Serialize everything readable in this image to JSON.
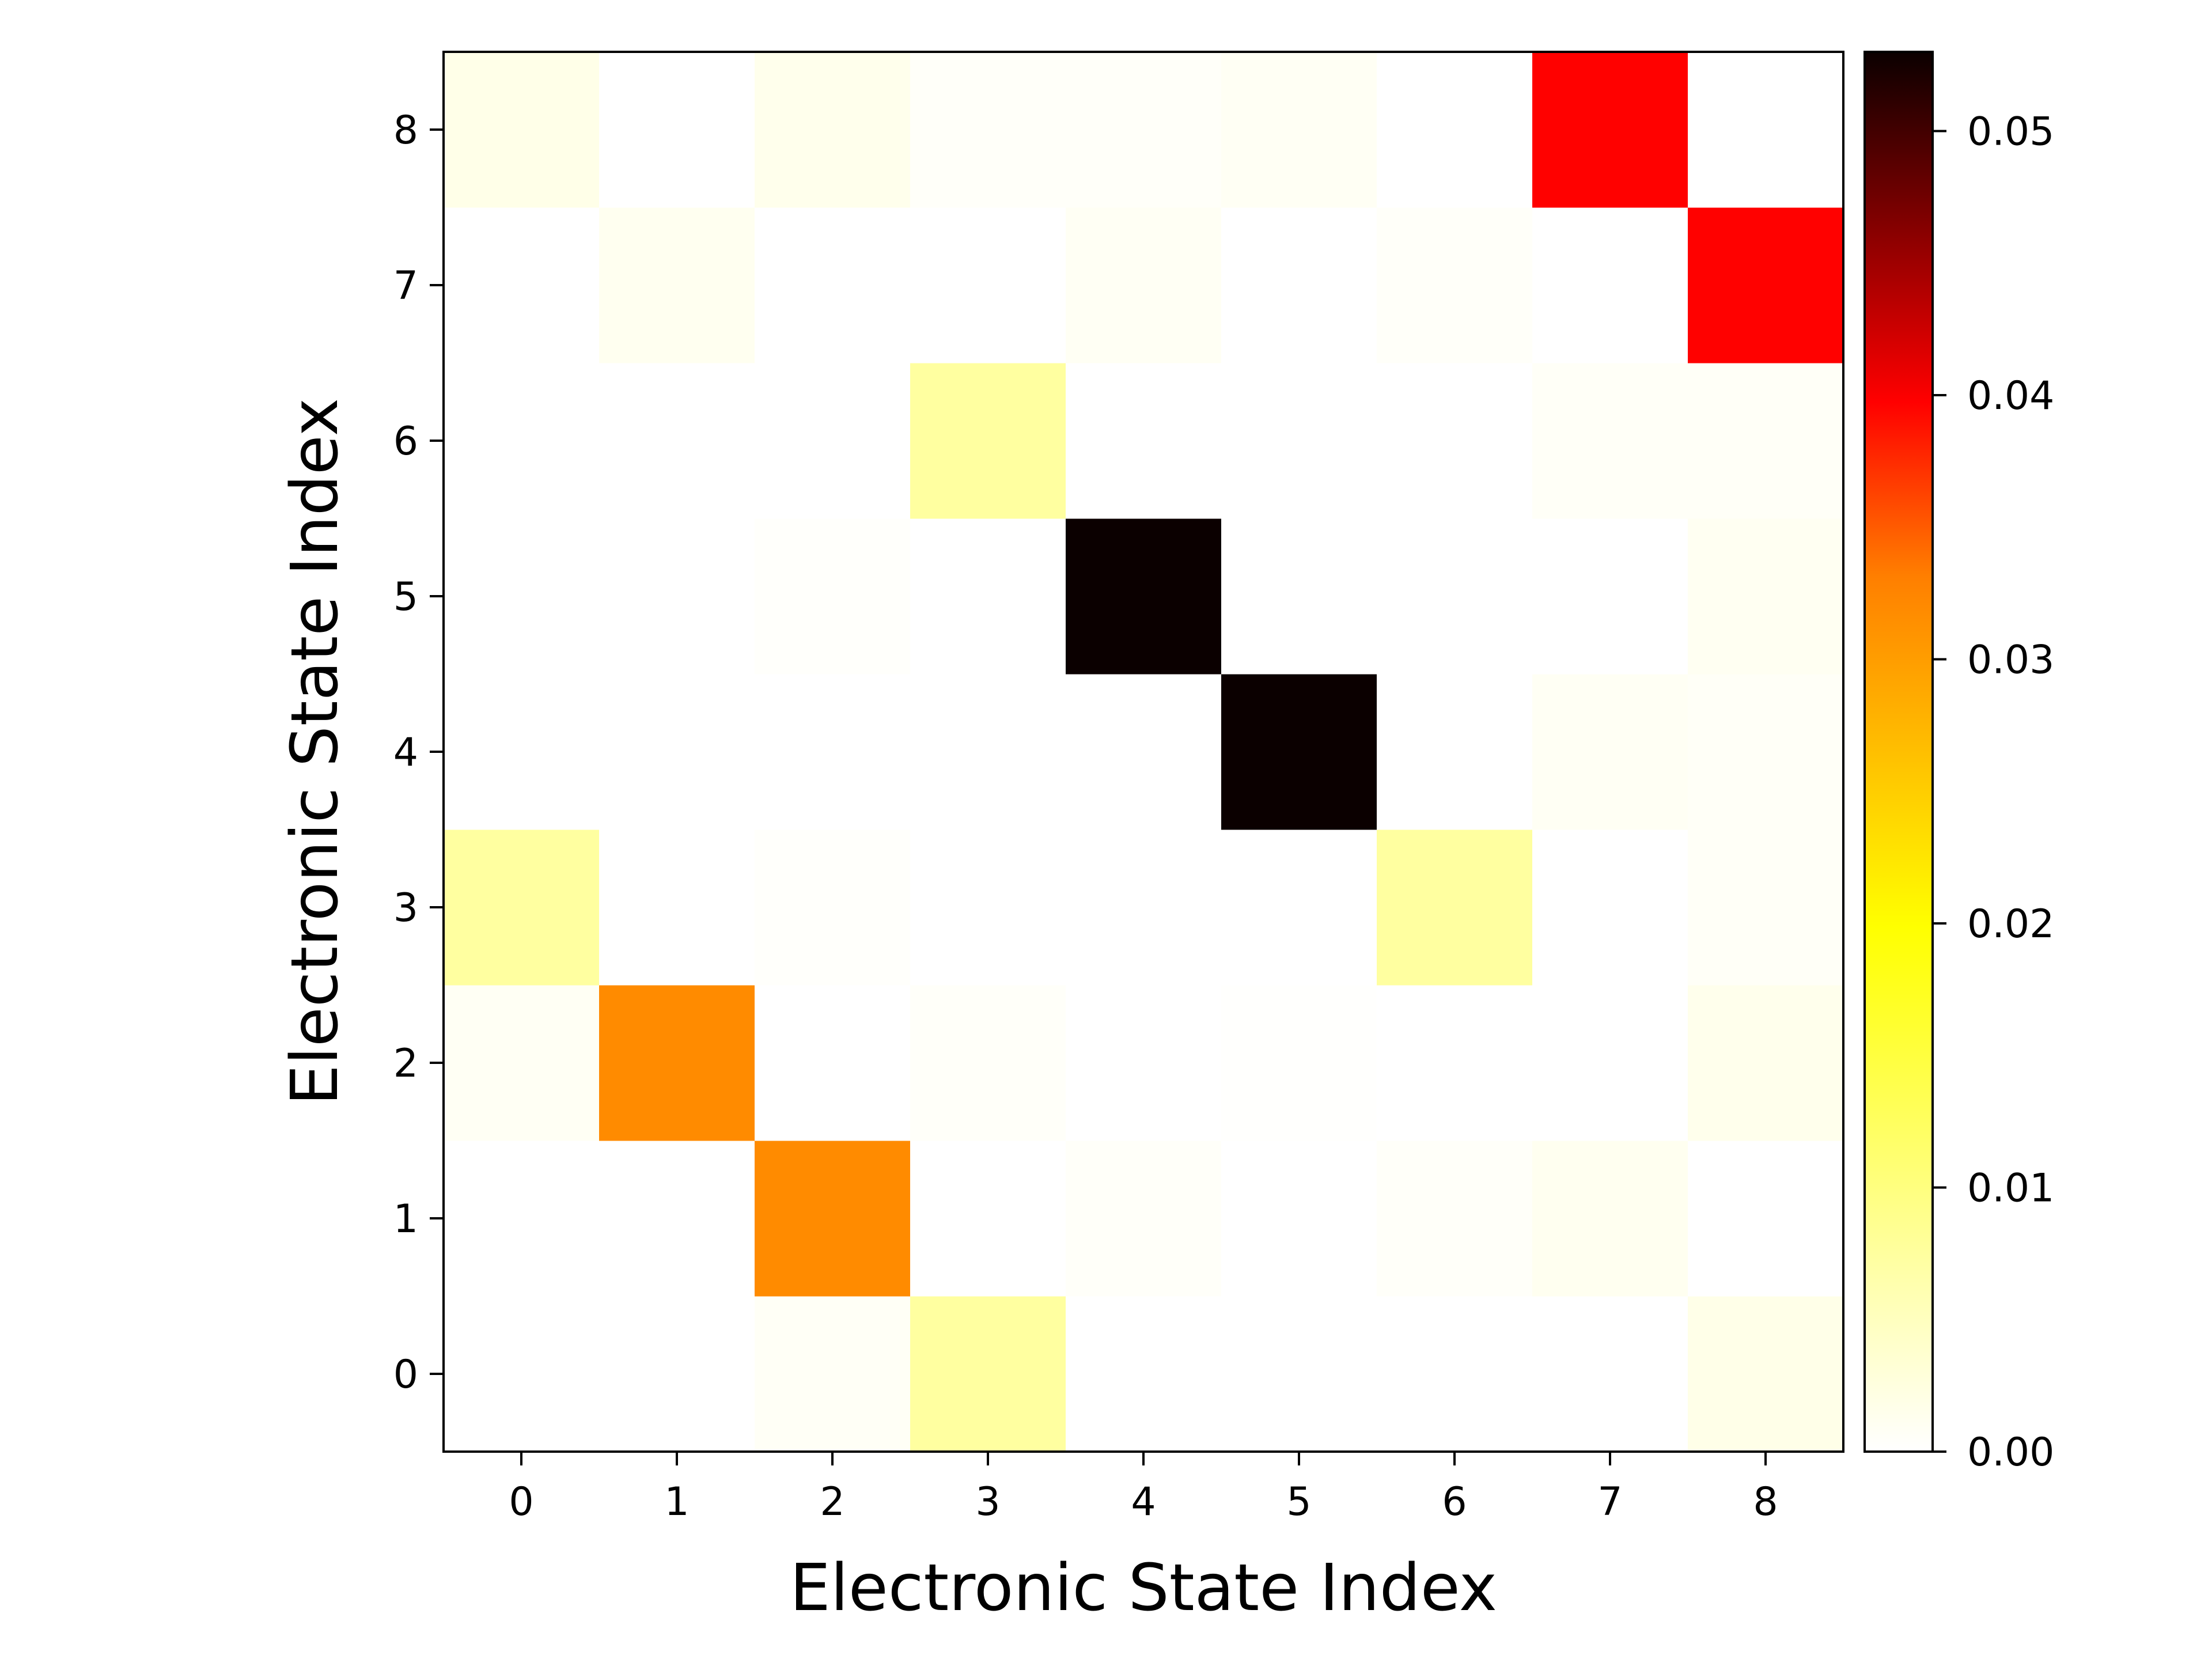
{
  "chart_data": {
    "type": "heatmap",
    "title": "",
    "xlabel": "Electronic State Index",
    "ylabel": "Electronic State Index",
    "x_categories": [
      "0",
      "1",
      "2",
      "3",
      "4",
      "5",
      "6",
      "7",
      "8"
    ],
    "y_categories": [
      "0",
      "1",
      "2",
      "3",
      "4",
      "5",
      "6",
      "7",
      "8"
    ],
    "values": [
      [
        0.0,
        0.0,
        0.0005,
        0.005,
        0.0,
        0.0,
        0.0,
        0.0,
        0.0012
      ],
      [
        0.0,
        0.0,
        0.0227,
        0.0,
        0.0003,
        0.0,
        0.0003,
        0.0008,
        0.0
      ],
      [
        0.0006,
        0.0227,
        0.0,
        0.0003,
        0.0,
        0.0001,
        0.0,
        0.0,
        0.001
      ],
      [
        0.005,
        0.0,
        0.0002,
        0.0,
        0.0,
        0.0,
        0.005,
        0.0,
        0.0004
      ],
      [
        0.0,
        0.0,
        0.0,
        0.0,
        0.0,
        0.053,
        0.0,
        0.0006,
        0.0004
      ],
      [
        0.0,
        0.0,
        0.0002,
        0.0,
        0.053,
        0.0,
        0.0,
        0.0,
        0.0007
      ],
      [
        0.0,
        0.0,
        0.0,
        0.005,
        0.0,
        0.0,
        0.0,
        0.0004,
        0.0004
      ],
      [
        0.0,
        0.0008,
        0.0,
        0.0,
        0.0006,
        0.0,
        0.0003,
        0.0,
        0.0336
      ],
      [
        0.0012,
        0.0,
        0.001,
        0.0003,
        0.0003,
        0.0006,
        0.0,
        0.0336,
        0.0
      ]
    ],
    "colormap": "hot_r",
    "colorbar": {
      "vmin": 0.0,
      "vmax": 0.053,
      "ticks": [
        0.0,
        0.01,
        0.02,
        0.03,
        0.04,
        0.05
      ],
      "tick_labels": [
        "0.00",
        "0.01",
        "0.02",
        "0.03",
        "0.04",
        "0.05"
      ],
      "placement": "right"
    },
    "grid": false,
    "legend": "none"
  }
}
